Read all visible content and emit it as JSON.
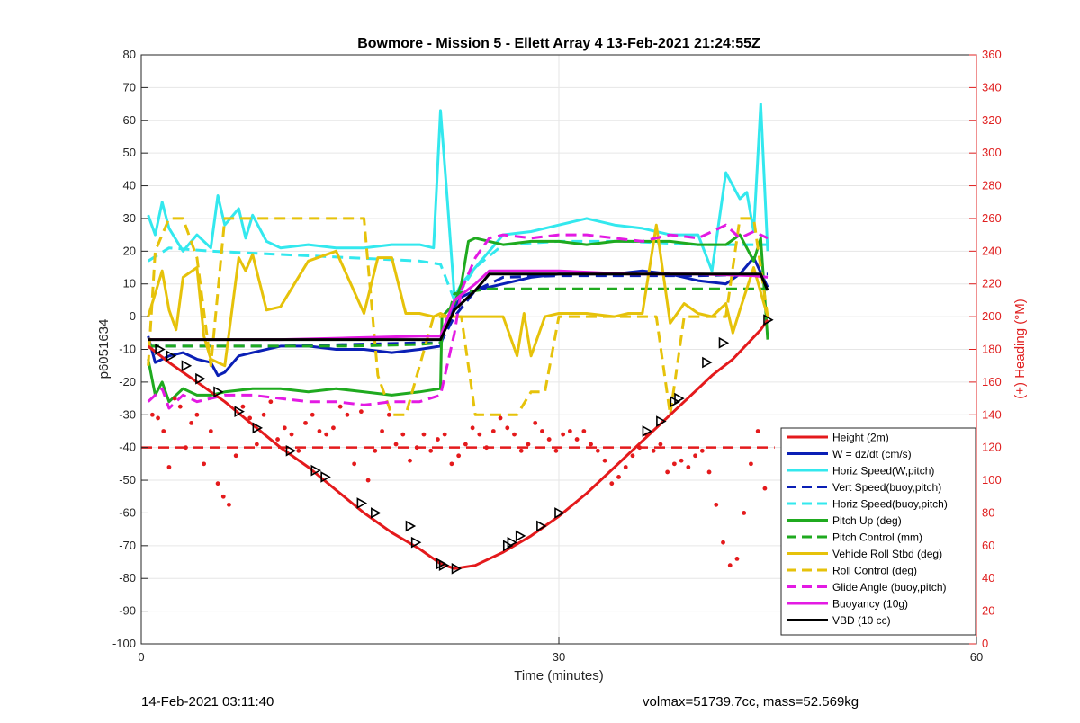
{
  "chart_data": {
    "type": "line",
    "title": "Bowmore - Mission 5 - Ellett Array 4 13-Feb-2021 21:24:55Z",
    "xlabel": "Time (minutes)",
    "ylabel": "p6051634",
    "y2label": "(+) Heading (°M)",
    "xlim": [
      0,
      60
    ],
    "ylim": [
      -100,
      80
    ],
    "y2lim": [
      0,
      360
    ],
    "xticks": [
      "0",
      "30",
      "60"
    ],
    "yticks": [
      "80",
      "70",
      "60",
      "50",
      "40",
      "30",
      "20",
      "10",
      "0",
      "-10",
      "-20",
      "-30",
      "-40",
      "-50",
      "-60",
      "-70",
      "-80",
      "-90",
      "-100"
    ],
    "y2ticks": [
      "360",
      "340",
      "320",
      "300",
      "280",
      "260",
      "240",
      "220",
      "200",
      "180",
      "160",
      "140",
      "120",
      "100",
      "80",
      "60",
      "40",
      "20",
      "0"
    ],
    "grid": true,
    "legend_position": "bottom-right",
    "series": [
      {
        "name": "Height (2m)",
        "color": "#e41a1c",
        "style": "solid",
        "x": [
          0.5,
          2,
          4,
          6,
          8,
          10,
          12,
          14,
          16,
          18,
          20,
          21.5,
          22.5,
          24,
          26,
          28,
          30,
          32,
          34,
          36,
          38,
          40,
          41,
          42.5,
          44.5,
          45
        ],
        "y": [
          -9,
          -14,
          -20,
          -26,
          -33,
          -40,
          -46,
          -53,
          -60,
          -66,
          -71,
          -75.5,
          -77,
          -76,
          -72,
          -67,
          -61,
          -54,
          -46,
          -38,
          -30,
          -22,
          -18,
          -13,
          -4,
          -1
        ]
      },
      {
        "name": "W = dz/dt (cm/s)",
        "color": "#0a1fb5",
        "style": "solid",
        "x": [
          0.5,
          1,
          2,
          3,
          4,
          5,
          5.5,
          6,
          7,
          8,
          10,
          12,
          14,
          16,
          18,
          20,
          21.5,
          22,
          23,
          24,
          26,
          28,
          30,
          32,
          34,
          36,
          38,
          40,
          42,
          43,
          44,
          45
        ],
        "y": [
          -6,
          -14,
          -12,
          -11,
          -13,
          -14,
          -18,
          -17,
          -12,
          -11,
          -9,
          -9,
          -10,
          -10,
          -11,
          -10,
          -9,
          0,
          6,
          8,
          10,
          12,
          13,
          13,
          13,
          14,
          13,
          11,
          10,
          13,
          18,
          9
        ]
      },
      {
        "name": "Horiz Speed(W,pitch)",
        "color": "#33e8ee",
        "style": "solid",
        "x": [
          0.5,
          1,
          1.5,
          2,
          3,
          4,
          5,
          5.5,
          6,
          7,
          7.5,
          8,
          9,
          10,
          12,
          14,
          16,
          18,
          20,
          21,
          21.5,
          22,
          22.5,
          23,
          24,
          26,
          28,
          30,
          32,
          34,
          36,
          38,
          40,
          41,
          42,
          43,
          43.5,
          44,
          44.5,
          45
        ],
        "y": [
          31,
          25,
          35,
          27,
          20,
          25,
          21,
          37,
          28,
          33,
          24,
          31,
          23,
          21,
          22,
          21,
          21,
          22,
          22,
          21,
          63,
          35,
          6,
          10,
          15,
          25,
          26,
          28,
          30,
          28,
          27,
          25,
          25,
          14,
          44,
          36,
          38,
          26,
          65,
          20
        ]
      },
      {
        "name": "Vert Speed(buoy,pitch)",
        "color": "#0a1fb5",
        "style": "dashed",
        "x": [
          0.5,
          5,
          10,
          15,
          20,
          21.5,
          22.5,
          24,
          26,
          30,
          35,
          40,
          45
        ],
        "y": [
          -9,
          -9,
          -9,
          -8.5,
          -8,
          -8,
          0,
          8,
          12,
          12.5,
          12.5,
          12.5,
          13
        ]
      },
      {
        "name": "Horiz Speed(buoy,pitch)",
        "color": "#33e8ee",
        "style": "dashed",
        "x": [
          0.5,
          2,
          5,
          10,
          15,
          20,
          21.5,
          22.5,
          24,
          26,
          30,
          35,
          40,
          45
        ],
        "y": [
          17,
          21,
          20,
          19,
          18,
          17,
          16,
          5,
          15,
          22,
          23,
          23,
          22,
          22
        ]
      },
      {
        "name": "Pitch Up (deg)",
        "color": "#1faa1f",
        "style": "solid",
        "x": [
          0.5,
          1,
          1.5,
          2,
          3,
          4,
          5,
          6,
          8,
          10,
          12,
          14,
          16,
          18,
          20,
          21.5,
          21.6,
          22.5,
          23,
          23.5,
          24,
          26,
          28,
          30,
          32,
          34,
          36,
          38,
          40,
          42,
          43,
          44,
          44.5,
          45
        ],
        "y": [
          -13,
          -24,
          -20,
          -26,
          -22,
          -24,
          -24,
          -23,
          -22,
          -22,
          -23,
          -22,
          -23,
          -24,
          -23,
          -22,
          0,
          4,
          10,
          23,
          24,
          22,
          23,
          23,
          22,
          23,
          23,
          23,
          22,
          22,
          25,
          17,
          24,
          -7
        ]
      },
      {
        "name": "Pitch Control (mm)",
        "color": "#1faa1f",
        "style": "dashed",
        "x": [
          0.5,
          5,
          10,
          15,
          20,
          21.5,
          22.5,
          25,
          30,
          35,
          40,
          45
        ],
        "y": [
          -9,
          -9,
          -9,
          -9,
          -8.5,
          -8,
          7,
          8.5,
          8.5,
          8.5,
          8.5,
          8.5
        ]
      },
      {
        "name": "Vehicle Roll Stbd (deg)",
        "color": "#e6c20a",
        "style": "solid",
        "x": [
          0.5,
          1.5,
          2,
          2.5,
          3,
          4,
          4.5,
          5,
          6,
          7,
          7.5,
          8,
          9,
          10,
          12,
          14,
          16,
          17,
          18,
          19,
          20,
          21,
          21.5,
          22,
          23,
          25,
          26,
          27,
          27.5,
          28,
          29,
          30,
          32,
          34,
          35,
          36,
          37,
          38,
          39,
          40,
          41,
          42,
          42.5,
          43,
          44,
          45
        ],
        "y": [
          0,
          14,
          2,
          -4,
          12,
          15,
          -6,
          -13,
          -15,
          18,
          14,
          19,
          2,
          3,
          17,
          20,
          1,
          18,
          18,
          1,
          1,
          0,
          1,
          0,
          0,
          0,
          0,
          -12,
          1,
          -12,
          0,
          1,
          1,
          0,
          1,
          1,
          28,
          -2,
          4,
          1,
          0,
          4,
          -5,
          2,
          15,
          0
        ]
      },
      {
        "name": "Roll Control (deg)",
        "color": "#e6c20a",
        "style": "dashed",
        "x": [
          0.5,
          1,
          2,
          3,
          4,
          5,
          6,
          7,
          8,
          9,
          10,
          11,
          12,
          13,
          14,
          15,
          16,
          17,
          18,
          19,
          20,
          21,
          22,
          23,
          24,
          25,
          26,
          27,
          28,
          29,
          30,
          32,
          34,
          36,
          37,
          38,
          39,
          40,
          41,
          42,
          43,
          44,
          45
        ],
        "y": [
          -15,
          20,
          30,
          30,
          18,
          -15,
          30,
          30,
          30,
          30,
          30,
          30,
          30,
          30,
          30,
          30,
          30,
          -18,
          -30,
          -30,
          -15,
          0,
          0,
          0,
          -30,
          -30,
          -30,
          -30,
          -23,
          -23,
          0,
          0,
          0,
          0,
          0,
          -30,
          0,
          0,
          0,
          0,
          30,
          30,
          0
        ]
      },
      {
        "name": "Glide Angle (buoy,pitch)",
        "color": "#e31ae3",
        "style": "dashed",
        "x": [
          0.5,
          1.5,
          2,
          3,
          4,
          6,
          8,
          10,
          12,
          14,
          16,
          18,
          20,
          21.5,
          22.5,
          23,
          24,
          25,
          26,
          28,
          30,
          32,
          34,
          36,
          38,
          40,
          42,
          43,
          44,
          45
        ],
        "y": [
          -26,
          -22,
          -28,
          -24,
          -26,
          -24,
          -24,
          -25,
          -26,
          -26,
          -27,
          -26,
          -26,
          -24,
          -5,
          8,
          18,
          24,
          25,
          24,
          25,
          25,
          24,
          23,
          25,
          24,
          28,
          24,
          26,
          24
        ]
      },
      {
        "name": "Buoyancy (10g)",
        "color": "#e31ae3",
        "style": "solid",
        "x": [
          0.5,
          5,
          10,
          15,
          20,
          21.5,
          22.5,
          24,
          25,
          30,
          35,
          40,
          44,
          45
        ],
        "y": [
          -7,
          -7,
          -7,
          -6.5,
          -6,
          -6,
          5,
          10,
          14,
          14,
          13,
          13,
          12.5,
          12
        ]
      },
      {
        "name": "VBD (10 cc)",
        "color": "#000000",
        "style": "solid",
        "x": [
          0.5,
          5,
          10,
          15,
          20,
          21.5,
          22.5,
          24,
          25,
          30,
          35,
          40,
          44.5,
          45
        ],
        "y": [
          -7,
          -7,
          -7,
          -7,
          -7,
          -7,
          2,
          8,
          13,
          13,
          13,
          13,
          13,
          8
        ]
      }
    ],
    "height_markers": {
      "x": [
        1.3,
        2.1,
        3.2,
        4.2,
        5.5,
        7.0,
        8.3,
        10.7,
        12.5,
        13.2,
        15.8,
        16.8,
        19.3,
        19.7,
        21.5,
        21.7,
        22.6,
        26.3,
        26.6,
        27.2,
        28.7,
        30,
        36.3,
        37.3,
        38.3,
        38.6,
        40.6,
        41.8,
        45
      ],
      "y": [
        -10,
        -12,
        -15,
        -19,
        -23,
        -29,
        -34,
        -41,
        -47,
        -49,
        -57,
        -60,
        -64,
        -69,
        -75.5,
        -76,
        -77,
        -70,
        -69,
        -67,
        -64,
        -60,
        -35,
        -32,
        -26,
        -25,
        -14,
        -8,
        -1
      ]
    },
    "heading_points": {
      "y_axis": "right",
      "color": "#e41a1c",
      "x": [
        0.8,
        1.2,
        1.6,
        2.0,
        2.4,
        2.8,
        3.2,
        3.6,
        4.0,
        4.5,
        5.0,
        5.5,
        5.9,
        6.3,
        6.8,
        7.3,
        7.8,
        8.3,
        8.8,
        9.3,
        9.8,
        10.3,
        10.8,
        11.3,
        11.8,
        12.3,
        12.8,
        13.3,
        13.8,
        14.3,
        14.8,
        15.3,
        15.8,
        16.3,
        16.8,
        17.3,
        17.8,
        18.3,
        18.8,
        19.3,
        19.8,
        20.3,
        20.8,
        21.3,
        21.8,
        22.3,
        22.8,
        23.3,
        23.8,
        24.3,
        24.8,
        25.3,
        25.8,
        26.3,
        26.8,
        27.3,
        27.8,
        28.3,
        28.8,
        29.3,
        29.8,
        30.3,
        30.8,
        31.3,
        31.8,
        32.3,
        32.8,
        33.3,
        33.8,
        34.3,
        34.8,
        35.3,
        35.8,
        36.3,
        36.8,
        37.3,
        37.8,
        38.3,
        38.8,
        39.3,
        39.8,
        40.3,
        40.8,
        41.3,
        41.8,
        42.3,
        42.8,
        43.3,
        43.8,
        44.3,
        44.8
      ],
      "y": [
        140,
        138,
        130,
        108,
        150,
        145,
        120,
        135,
        140,
        110,
        130,
        98,
        90,
        85,
        115,
        145,
        138,
        122,
        140,
        148,
        125,
        132,
        128,
        118,
        135,
        140,
        130,
        128,
        132,
        145,
        140,
        110,
        142,
        100,
        118,
        130,
        140,
        122,
        128,
        112,
        120,
        128,
        118,
        125,
        128,
        110,
        115,
        122,
        132,
        128,
        120,
        130,
        138,
        132,
        128,
        118,
        122,
        135,
        130,
        125,
        118,
        128,
        130,
        125,
        130,
        122,
        118,
        112,
        98,
        102,
        108,
        115,
        120,
        128,
        118,
        122,
        105,
        110,
        112,
        108,
        115,
        118,
        105,
        85,
        62,
        48,
        52,
        80,
        110,
        130,
        95
      ]
    },
    "reference_lines": [
      {
        "axis": "right",
        "value": 120,
        "color": "#e41a1c",
        "style": "dashed"
      }
    ]
  },
  "footer": {
    "left": "14-Feb-2021 03:11:40",
    "right": "volmax=51739.7cc, mass=52.569kg"
  }
}
